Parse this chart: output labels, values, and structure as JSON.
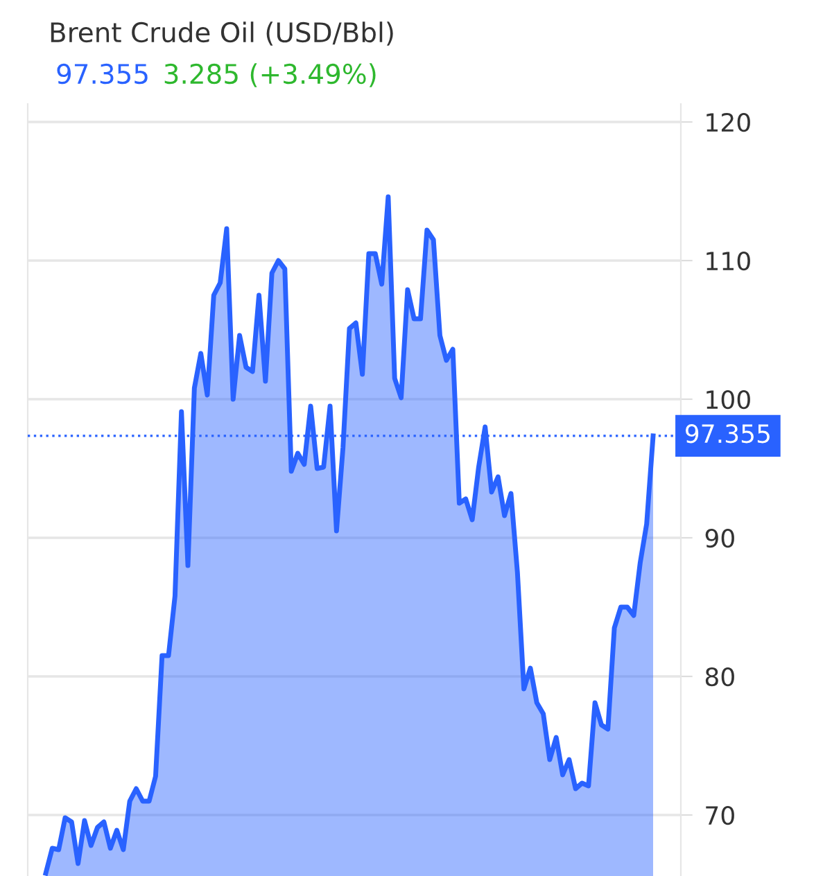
{
  "chart_data": {
    "type": "area",
    "title": "Brent Crude Oil (USD/Bbl)",
    "subtitle": "97.355",
    "annotations": [
      "3.285 (+3.49%)"
    ],
    "categories": [
      null,
      null,
      null,
      null,
      null,
      null,
      null,
      null,
      null,
      null,
      null,
      null,
      null,
      null,
      null,
      null,
      null,
      null,
      null,
      null,
      null,
      null,
      null,
      null,
      null,
      null,
      null,
      null,
      null,
      null,
      null,
      null,
      null,
      null,
      null,
      null,
      null,
      null,
      null,
      null,
      null,
      null,
      null,
      null,
      null,
      null,
      null,
      null,
      null,
      null,
      null,
      null,
      null,
      null,
      null,
      null,
      null,
      null,
      null,
      null,
      null,
      null,
      null,
      null,
      null,
      null,
      null,
      null,
      null,
      null,
      null,
      null,
      null,
      null,
      null,
      null,
      null,
      null,
      null,
      null,
      null,
      null,
      null,
      null,
      null,
      null,
      null,
      null,
      null,
      null,
      null,
      null,
      null,
      null,
      null
    ],
    "series": [
      {
        "color": "#2962ff",
        "values": [
          65.8,
          67.6,
          67.5,
          69.8,
          69.5,
          66.5,
          69.6,
          67.8,
          69.1,
          69.5,
          67.6,
          68.9,
          67.5,
          71.0,
          71.9,
          71.0,
          71.0,
          72.8,
          81.5,
          81.5,
          85.8,
          99.1,
          88.0,
          100.8,
          103.3,
          100.3,
          107.5,
          108.4,
          112.3,
          100.0,
          104.6,
          102.3,
          102.0,
          107.5,
          101.3,
          109.1,
          110.0,
          109.4,
          94.8,
          96.1,
          95.3,
          99.5,
          95.0,
          95.1,
          99.5,
          90.5,
          96.5,
          105.1,
          105.5,
          101.8,
          110.5,
          110.5,
          108.3,
          114.6,
          101.5,
          100.1,
          107.9,
          105.8,
          105.8,
          112.2,
          111.5,
          104.6,
          102.8,
          103.6,
          92.5,
          92.8,
          91.3,
          95.1,
          98.0,
          93.3,
          94.4,
          91.6,
          93.2,
          87.5,
          79.1,
          80.6,
          78.1,
          77.3,
          74.0,
          75.6,
          72.9,
          74.0,
          71.9,
          72.3,
          72.1,
          78.1,
          76.5,
          76.2,
          83.5,
          85.0,
          85.0,
          84.4,
          88.2,
          91.0,
          97.355
        ]
      }
    ],
    "ylim": [
      65.6,
      121.3
    ],
    "yticks": [
      70,
      80,
      90,
      100,
      110,
      120
    ],
    "grid": "y",
    "tick_labels": "y",
    "ref_lines": [
      {
        "axis": "y",
        "value": 97.355,
        "label": "97.355",
        "color": "#2962ff",
        "line_style": "dotted"
      }
    ]
  }
}
